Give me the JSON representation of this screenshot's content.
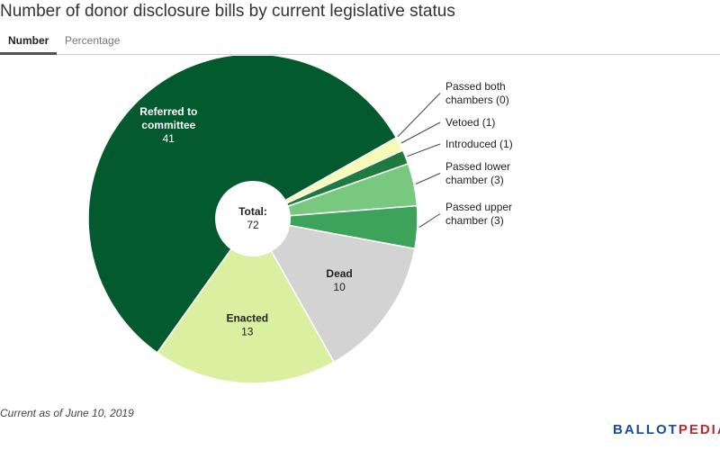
{
  "title": "Number of donor disclosure bills by current legislative status",
  "tabs": {
    "number": "Number",
    "percentage": "Percentage",
    "active": "Number"
  },
  "footnote": "Current as of June 10, 2019",
  "brand": {
    "part1": "BALLOT",
    "part2": "PEDIA",
    "color1": "#1a4a9c",
    "color2": "#b8292f"
  },
  "center": {
    "label": "Total:",
    "value": "72"
  },
  "chart_data": {
    "type": "pie",
    "title": "Number of donor disclosure bills by current legislative status",
    "total": 72,
    "slices": [
      {
        "label": "Passed both chambers",
        "value": 0,
        "color": "#ffffff",
        "label_lines": [
          "Passed both",
          "chambers (0)"
        ]
      },
      {
        "label": "Vetoed",
        "value": 1,
        "color": "#f7f9b6",
        "label_lines": [
          "Vetoed (1)"
        ]
      },
      {
        "label": "Introduced",
        "value": 1,
        "color": "#1e7b3f",
        "label_lines": [
          "Introduced (1)"
        ]
      },
      {
        "label": "Passed lower chamber",
        "value": 3,
        "color": "#79c87f",
        "label_lines": [
          "Passed lower",
          "chamber (3)"
        ]
      },
      {
        "label": "Passed upper chamber",
        "value": 3,
        "color": "#3da25a",
        "label_lines": [
          "Passed upper",
          "chamber (3)"
        ]
      },
      {
        "label": "Dead",
        "value": 10,
        "color": "#d3d3d3",
        "label_lines": [
          "Dead",
          "10"
        ]
      },
      {
        "label": "Enacted",
        "value": 13,
        "color": "#dbefa1",
        "label_lines": [
          "Enacted",
          "13"
        ]
      },
      {
        "label": "Referred to committee",
        "value": 41,
        "color": "#035a2e",
        "label_lines": [
          "Referred to",
          "committee",
          "41"
        ]
      }
    ]
  }
}
